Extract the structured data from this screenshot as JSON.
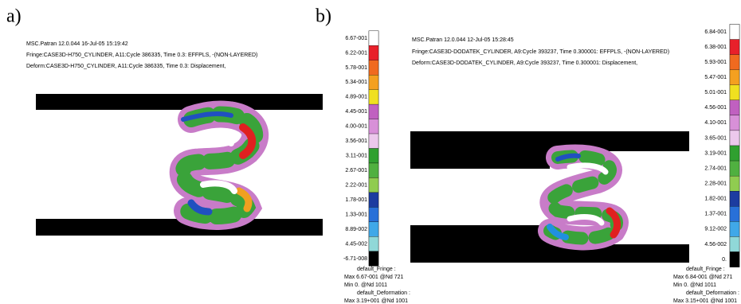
{
  "panels": [
    {
      "label": "a)",
      "header": [
        "MSC.Patran 12.0.044 16-Jul-05 15:19:42",
        "Fringe:CASE3D-H750_CYLINDER, A11:Cycle 386335, Time 0.3: EFFPLS, -(NON-LAYERED)",
        "Deform:CASE3D-H750_CYLINDER, A11:Cycle 386335, Time 0.3: Displacement,"
      ],
      "legend": [
        "6.67-001",
        "6.22-001",
        "5.78-001",
        "5.34-001",
        "4.89-001",
        "4.45-001",
        "4.00-001",
        "3.56-001",
        "3.11-001",
        "2.67-001",
        "2.22-001",
        "1.78-001",
        "1.33-001",
        "8.89-002",
        "4.45-002",
        "-6.71-008"
      ],
      "footer": [
        "default_Fringe :",
        "Max 6.67-001 @Nd 721",
        "Min 0. @Nd 1011",
        "default_Deformation :",
        "Max 3.19+001 @Nd 1001"
      ]
    },
    {
      "label": "b)",
      "header": [
        "MSC.Patran 12.0.044 12-Jul-05 15:28:45",
        "Fringe:CASE3D-DODATEK_CYLINDER, A9:Cycle 393237, Time 0.300001: EFFPLS, -(NON-LAYERED)",
        "Deform:CASE3D-DODATEK_CYLINDER, A9:Cycle 393237, Time 0.300001: Displacement,"
      ],
      "legend": [
        "6.84-001",
        "6.38-001",
        "5.93-001",
        "5.47-001",
        "5.01-001",
        "4.56-001",
        "4.10-001",
        "3.65-001",
        "3.19-001",
        "2.74-001",
        "2.28-001",
        "1.82-001",
        "1.37-001",
        "9.12-002",
        "4.56-002",
        "0."
      ],
      "footer": [
        "default_Fringe :",
        "Max 6.84-001 @Nd 271",
        "Min 0. @Nd 1011",
        "default_Deformation :",
        "Max 3.15+001 @Nd 1001"
      ]
    }
  ]
}
